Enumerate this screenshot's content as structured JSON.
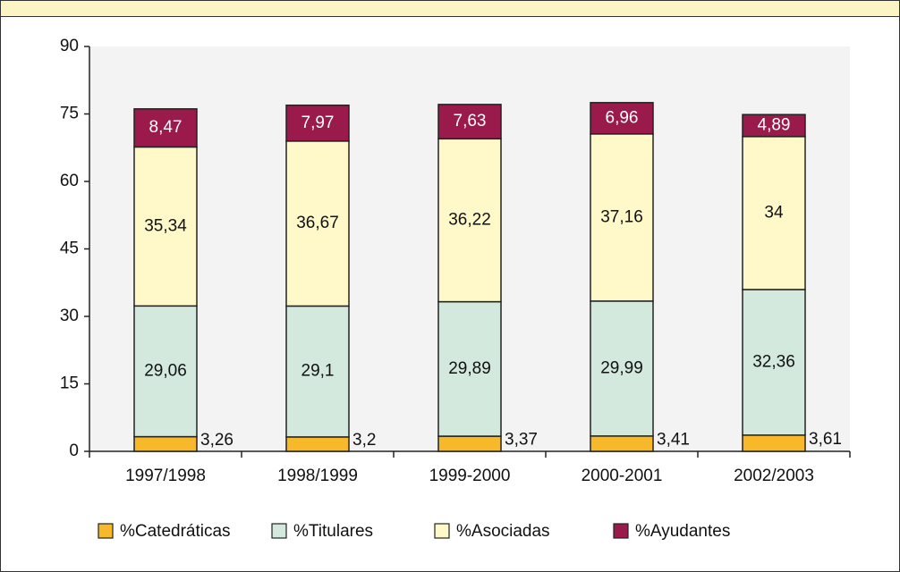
{
  "chart_data": {
    "type": "stacked_bar",
    "categories": [
      "1997/1998",
      "1998/1999",
      "1999-2000",
      "2000-2001",
      "2002/2003"
    ],
    "series": [
      {
        "name": "%Catedráticas",
        "color": "#f7b829",
        "values": [
          3.26,
          3.2,
          3.37,
          3.41,
          3.61
        ],
        "value_labels": [
          "3,26",
          "3,2",
          "3,37",
          "3,41",
          "3,61"
        ]
      },
      {
        "name": "%Titulares",
        "color": "#d3e9dd",
        "values": [
          29.06,
          29.1,
          29.89,
          29.99,
          32.36
        ],
        "value_labels": [
          "29,06",
          "29,1",
          "29,89",
          "29,99",
          "32,36"
        ]
      },
      {
        "name": "%Asociadas",
        "color": "#fff8c8",
        "values": [
          35.34,
          36.67,
          36.22,
          37.16,
          34
        ],
        "value_labels": [
          "35,34",
          "36,67",
          "36,22",
          "37,16",
          "34"
        ]
      },
      {
        "name": "%Ayudantes",
        "color": "#9b1a4c",
        "values": [
          8.47,
          7.97,
          7.63,
          6.96,
          4.89
        ],
        "value_labels": [
          "8,47",
          "7,97",
          "7,63",
          "6,96",
          "4,89"
        ]
      }
    ],
    "ylim": [
      0,
      90
    ],
    "yticks": [
      0,
      15,
      30,
      45,
      60,
      75,
      90
    ],
    "grid": false
  }
}
